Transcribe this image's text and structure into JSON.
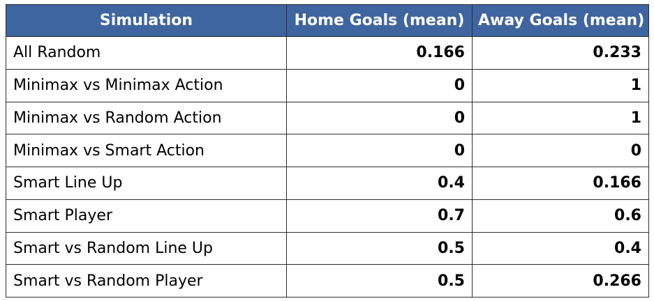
{
  "table": {
    "headers": [
      "Simulation",
      "Home Goals (mean)",
      "Away Goals (mean)"
    ],
    "rows": [
      [
        "All Random",
        "0.166",
        "0.233"
      ],
      [
        "Minimax vs Minimax Action",
        "0",
        "1"
      ],
      [
        "Minimax vs Random Action",
        "0",
        "1"
      ],
      [
        "Minimax vs Smart Action",
        "0",
        "0"
      ],
      [
        "Smart Line Up",
        "0.4",
        "0.166"
      ],
      [
        "Smart Player",
        "0.7",
        "0.6"
      ],
      [
        "Smart vs Random Line Up",
        "0.5",
        "0.4"
      ],
      [
        "Smart vs Random Player",
        "0.5",
        "0.266"
      ]
    ]
  },
  "colors": {
    "header_background": "#3f65a0",
    "header_text": "#ffffff",
    "border": "#2d2d2d"
  }
}
